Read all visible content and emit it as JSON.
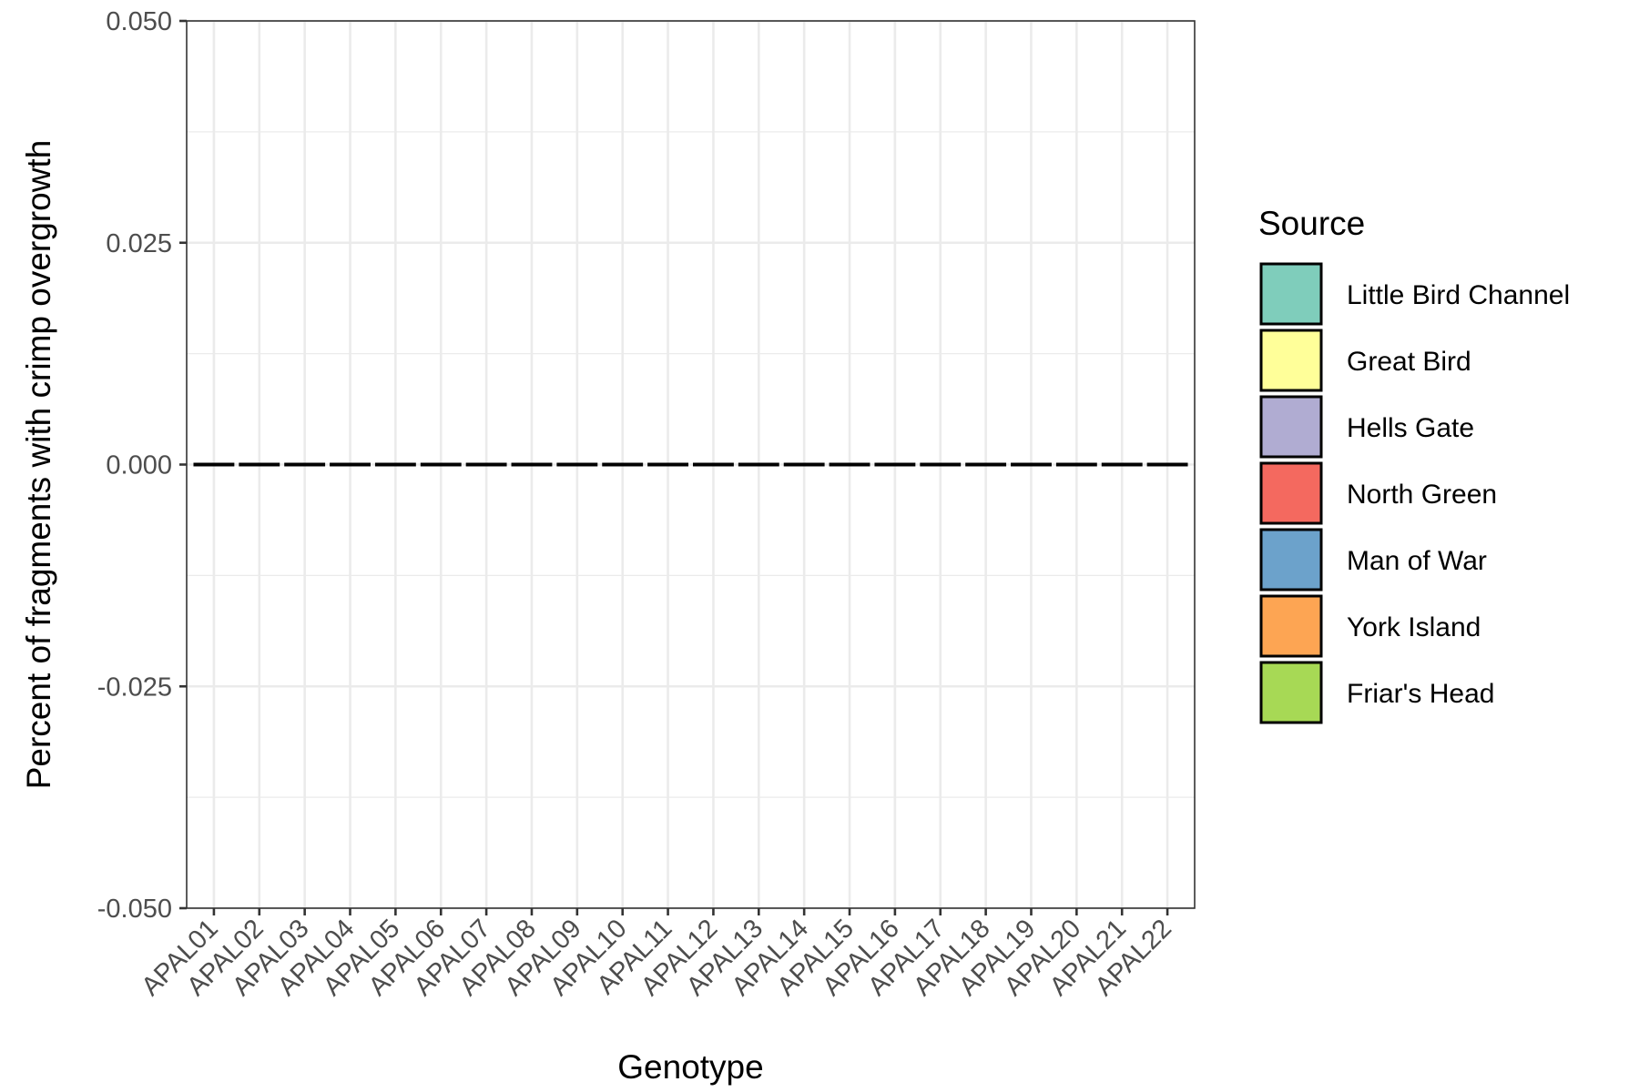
{
  "chart_data": {
    "type": "bar",
    "title": "",
    "xlabel": "Genotype",
    "ylabel": "Percent of fragments with crimp overgrowth",
    "categories": [
      "APAL01",
      "APAL02",
      "APAL03",
      "APAL04",
      "APAL05",
      "APAL06",
      "APAL07",
      "APAL08",
      "APAL09",
      "APAL10",
      "APAL11",
      "APAL12",
      "APAL13",
      "APAL14",
      "APAL15",
      "APAL16",
      "APAL17",
      "APAL18",
      "APAL19",
      "APAL20",
      "APAL21",
      "APAL22"
    ],
    "values": [
      0,
      0,
      0,
      0,
      0,
      0,
      0,
      0,
      0,
      0,
      0,
      0,
      0,
      0,
      0,
      0,
      0,
      0,
      0,
      0,
      0,
      0
    ],
    "ylim": [
      -0.05,
      0.05
    ],
    "yticks": [
      -0.05,
      -0.025,
      0,
      0.025,
      0.05
    ],
    "ytick_labels": [
      "-0.050",
      "-0.025",
      "0.000",
      "0.025",
      "0.050"
    ],
    "grid": true,
    "legend": {
      "title": "Source",
      "position": "right",
      "entries": [
        {
          "label": "Little Bird Channel",
          "color": "#7fcdbb"
        },
        {
          "label": "Great Bird",
          "color": "#ffff99"
        },
        {
          "label": "Hells Gate",
          "color": "#b0acd2"
        },
        {
          "label": "North Green",
          "color": "#f4695f"
        },
        {
          "label": "Man of War",
          "color": "#6ca2cb"
        },
        {
          "label": "York Island",
          "color": "#fda553"
        },
        {
          "label": "Friar's Head",
          "color": "#a7d955"
        }
      ]
    }
  }
}
